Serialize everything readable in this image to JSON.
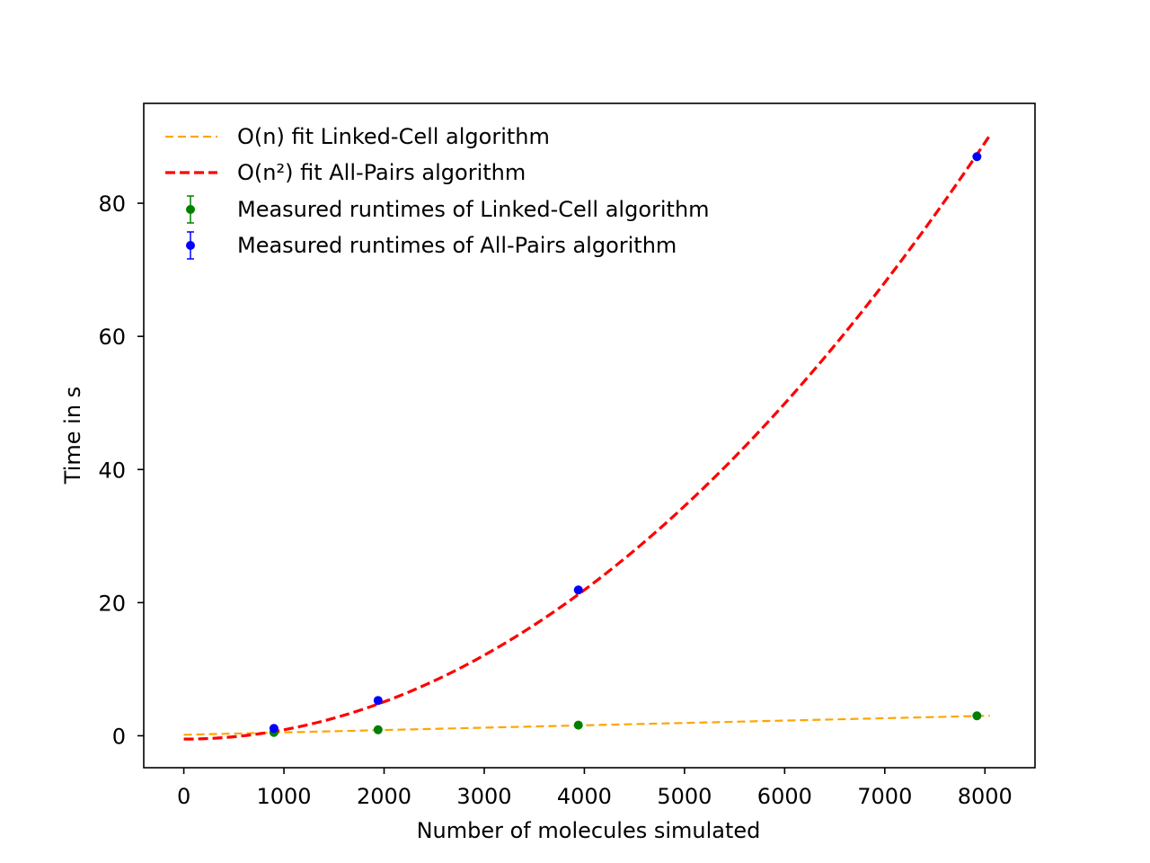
{
  "chart_data": {
    "type": "scatter",
    "title": "",
    "xlabel": "Number of molecules simulated",
    "ylabel": "Time in s",
    "xlim": [
      -400,
      8500
    ],
    "ylim": [
      -4.8,
      95
    ],
    "xticks": [
      0,
      1000,
      2000,
      3000,
      4000,
      5000,
      6000,
      7000,
      8000
    ],
    "yticks": [
      0,
      20,
      40,
      60,
      80
    ],
    "grid": false,
    "legend_position": "top-left",
    "series": [
      {
        "name": "O(n) fit Linked-Cell algorithm",
        "kind": "fit-line",
        "style": "dashed",
        "color": "#ffa500",
        "model": "linear",
        "x_range": [
          0,
          8050
        ],
        "coefficients": {
          "a": 0.000355,
          "b": 0.15
        }
      },
      {
        "name": "O(n²) fit All-Pairs algorithm",
        "kind": "fit-line",
        "style": "dashed",
        "color": "#ff0000",
        "model": "quadratic",
        "x_range": [
          0,
          8050
        ],
        "coefficients": {
          "a": 1.4e-06,
          "b": 0,
          "c": -0.5
        }
      },
      {
        "name": "Measured runtimes of Linked-Cell algorithm",
        "kind": "errorbar-points",
        "color": "#008000",
        "x": [
          900,
          1940,
          3940,
          7920
        ],
        "y": [
          0.5,
          0.9,
          1.6,
          3.0
        ]
      },
      {
        "name": "Measured runtimes of All-Pairs algorithm",
        "kind": "errorbar-points",
        "color": "#0000ff",
        "x": [
          900,
          1940,
          3940,
          7920
        ],
        "y": [
          1.1,
          5.3,
          21.9,
          87.0
        ]
      }
    ]
  }
}
